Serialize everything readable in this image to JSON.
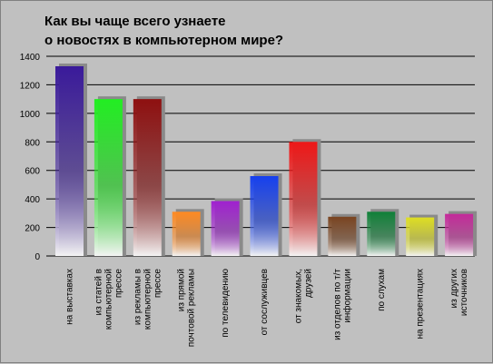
{
  "chart_data": {
    "type": "bar",
    "title": [
      "Как вы чаще всего узнаете",
      "о новостях в компьютерном мире?"
    ],
    "ylim": [
      0,
      1400
    ],
    "yticks": [
      0,
      200,
      400,
      600,
      800,
      1000,
      1200,
      1400
    ],
    "grid": true,
    "categories": [
      [
        "на выставках"
      ],
      [
        "из статей в",
        "компьютерной",
        "прессе"
      ],
      [
        "из рекламы в",
        "компьютерной",
        "прессе"
      ],
      [
        "из прямой",
        "почтовой рекламы"
      ],
      [
        "по телевидению"
      ],
      [
        "от сослуживцев"
      ],
      [
        "от знакомых,",
        "друзей"
      ],
      [
        "из отделов по т/т",
        "информации"
      ],
      [
        "по слухам"
      ],
      [
        "на презентациях"
      ],
      [
        "из других",
        "источников"
      ]
    ],
    "values": [
      1330,
      1100,
      1100,
      310,
      385,
      560,
      800,
      275,
      310,
      270,
      295
    ],
    "colors": [
      "#3a1a9a",
      "#22ee22",
      "#8e1010",
      "#ff8a22",
      "#a020d0",
      "#1640ee",
      "#ee1818",
      "#7a4420",
      "#108038",
      "#dede22",
      "#c42a9a"
    ]
  }
}
